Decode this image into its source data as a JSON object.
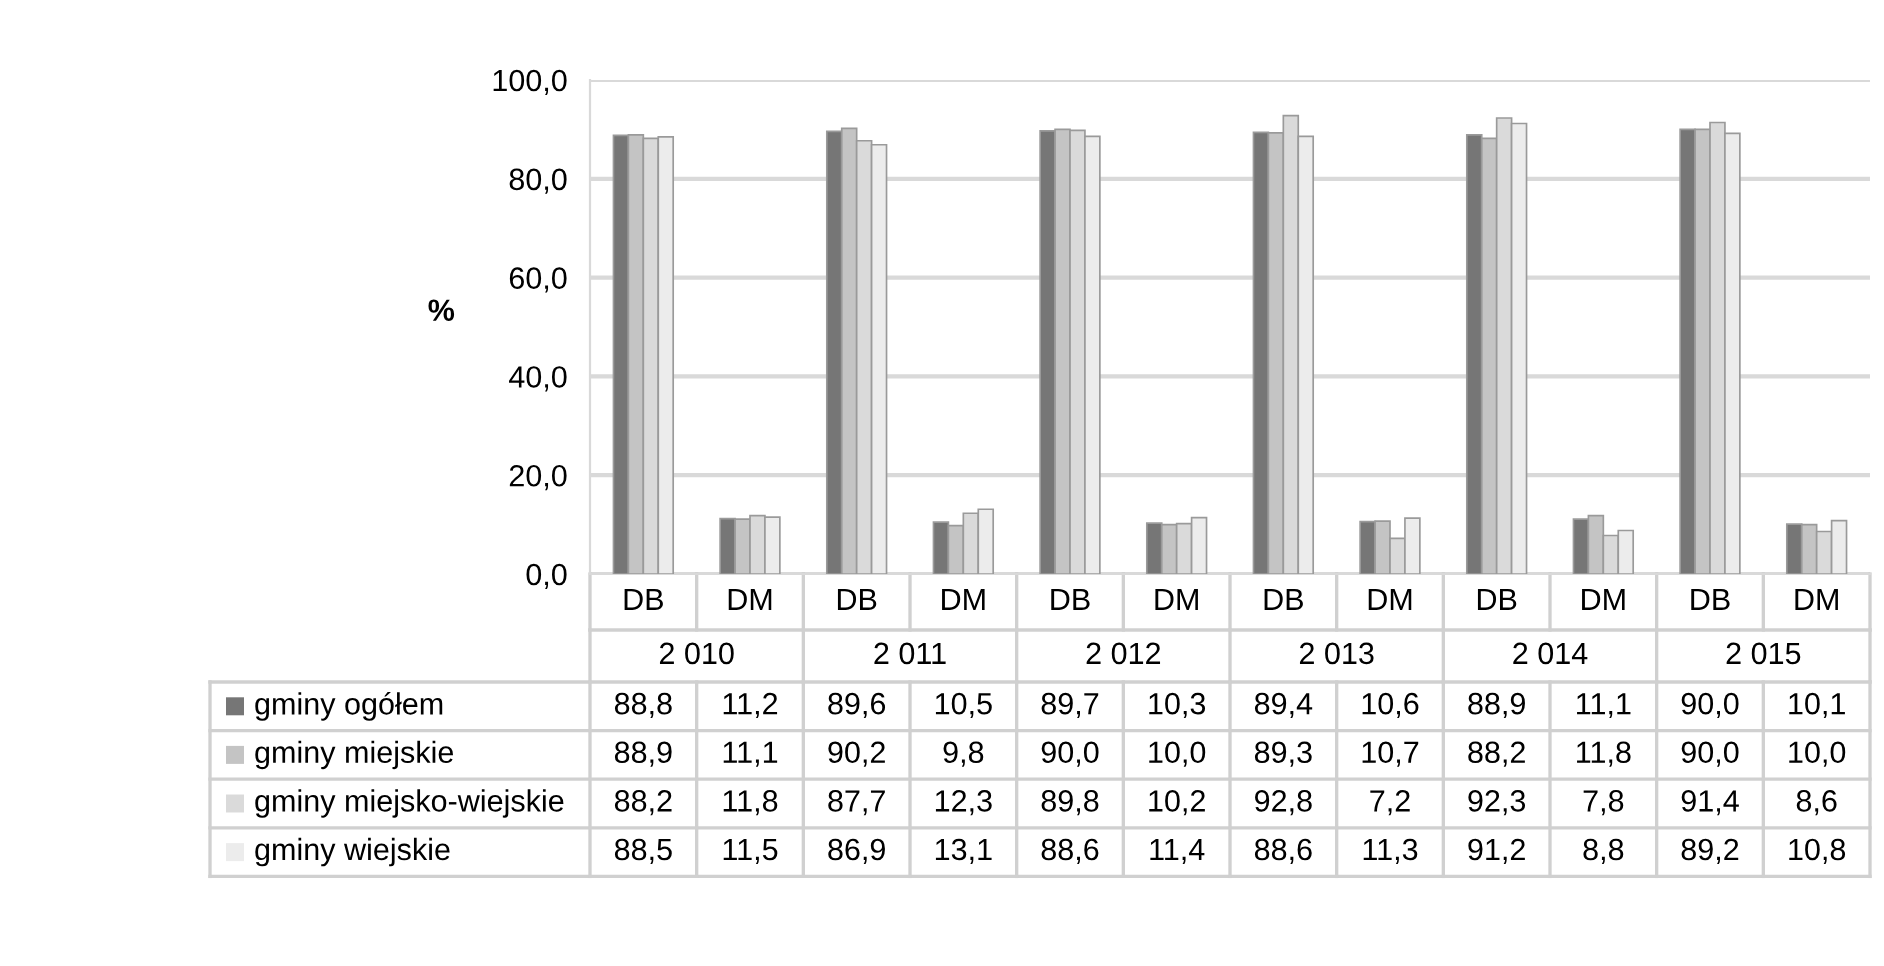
{
  "chart_data": {
    "type": "bar",
    "ylabel": "%",
    "categories": [
      "DB",
      "DM",
      "DB",
      "DM",
      "DB",
      "DM",
      "DB",
      "DM",
      "DB",
      "DM",
      "DB",
      "DM"
    ],
    "annotations": [
      "2 010",
      "2 011",
      "2 012",
      "2 013",
      "2 014",
      "2 015"
    ],
    "series": [
      {
        "name": "gminy ogółem",
        "color": "#767676",
        "values": [
          88.8,
          11.2,
          89.6,
          10.5,
          89.7,
          10.3,
          89.4,
          10.6,
          88.9,
          11.1,
          90.0,
          10.1
        ],
        "value_labels": [
          "88,8",
          "11,2",
          "89,6",
          "10,5",
          "89,7",
          "10,3",
          "89,4",
          "10,6",
          "88,9",
          "11,1",
          "90,0",
          "10,1"
        ]
      },
      {
        "name": "gminy miejskie",
        "color": "#c4c4c4",
        "values": [
          88.9,
          11.1,
          90.2,
          9.8,
          90.0,
          10.0,
          89.3,
          10.7,
          88.2,
          11.8,
          90.0,
          10.0
        ],
        "value_labels": [
          "88,9",
          "11,1",
          "90,2",
          "9,8",
          "90,0",
          "10,0",
          "89,3",
          "10,7",
          "88,2",
          "11,8",
          "90,0",
          "10,0"
        ]
      },
      {
        "name": "gminy miejsko-wiejskie",
        "color": "#dadada",
        "values": [
          88.2,
          11.8,
          87.7,
          12.3,
          89.8,
          10.2,
          92.8,
          7.2,
          92.3,
          7.8,
          91.4,
          8.6
        ],
        "value_labels": [
          "88,2",
          "11,8",
          "87,7",
          "12,3",
          "89,8",
          "10,2",
          "92,8",
          "7,2",
          "92,3",
          "7,8",
          "91,4",
          "8,6"
        ]
      },
      {
        "name": "gminy wiejskie",
        "color": "#ececec",
        "values": [
          88.5,
          11.5,
          86.9,
          13.1,
          88.6,
          11.4,
          88.6,
          11.3,
          91.2,
          8.8,
          89.2,
          10.8
        ],
        "value_labels": [
          "88,5",
          "11,5",
          "86,9",
          "13,1",
          "88,6",
          "11,4",
          "88,6",
          "11,3",
          "91,2",
          "8,8",
          "89,2",
          "10,8"
        ]
      }
    ],
    "ylim": [
      0,
      100
    ],
    "yticks": [
      {
        "value": 0,
        "label": "0,0"
      },
      {
        "value": 20,
        "label": "20,0"
      },
      {
        "value": 40,
        "label": "40,0"
      },
      {
        "value": 60,
        "label": "60,0"
      },
      {
        "value": 80,
        "label": "80,0"
      },
      {
        "value": 100,
        "label": "100,0"
      }
    ],
    "grid": "y",
    "legend": "bottom left"
  }
}
